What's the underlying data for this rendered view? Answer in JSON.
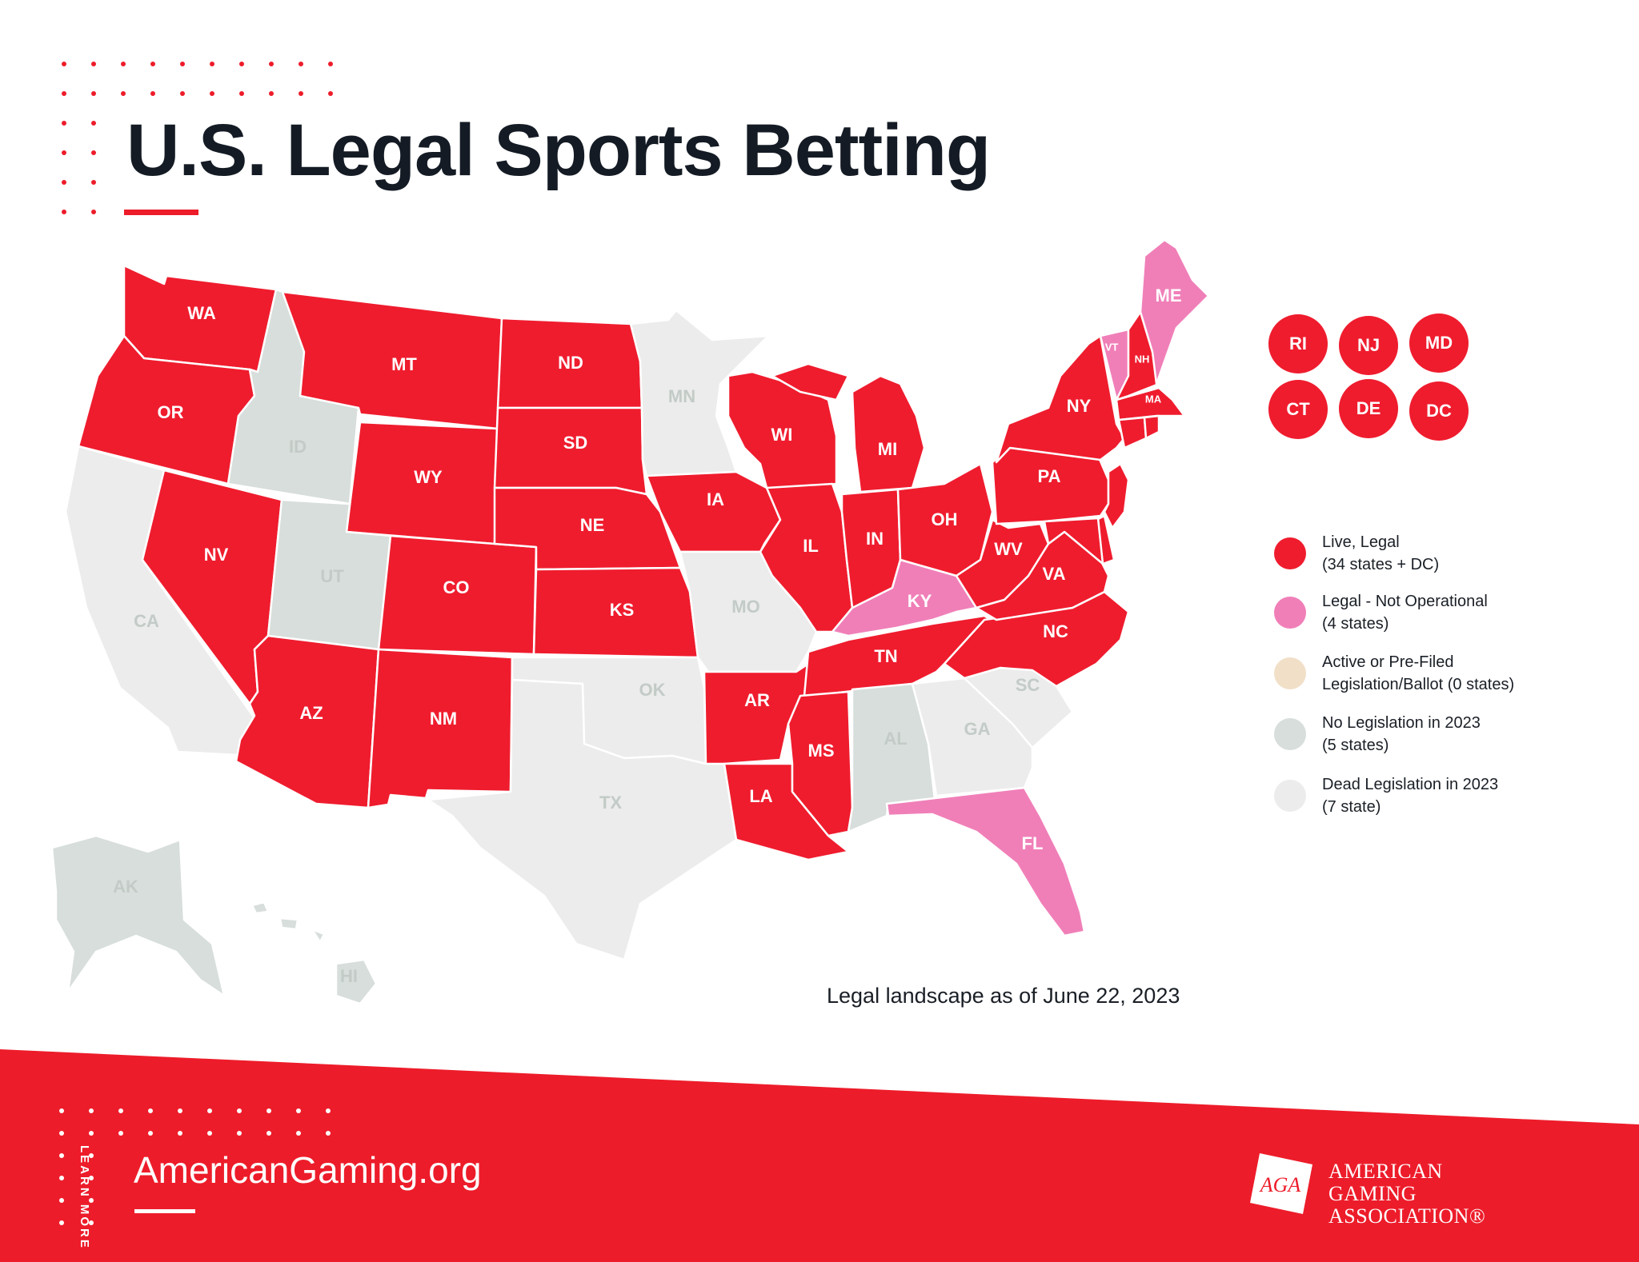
{
  "header": {
    "title": "U.S. Legal Sports Betting"
  },
  "colors": {
    "live_legal": "#ef1c2e",
    "not_operational": "#f07fb8",
    "active_prefiled": "#f1dfc8",
    "no_legislation": "#d7dedb",
    "dead_legislation": "#ebeceb",
    "brand_red": "#ed1c2a",
    "text_dark": "#141b24"
  },
  "map": {
    "states": {
      "WA": {
        "label": "WA",
        "status": "live_legal"
      },
      "OR": {
        "label": "OR",
        "status": "live_legal"
      },
      "CA": {
        "label": "CA",
        "status": "dead_legislation"
      },
      "ID": {
        "label": "ID",
        "status": "no_legislation"
      },
      "NV": {
        "label": "NV",
        "status": "live_legal"
      },
      "MT": {
        "label": "MT",
        "status": "live_legal"
      },
      "WY": {
        "label": "WY",
        "status": "live_legal"
      },
      "UT": {
        "label": "UT",
        "status": "no_legislation"
      },
      "AZ": {
        "label": "AZ",
        "status": "live_legal"
      },
      "CO": {
        "label": "CO",
        "status": "live_legal"
      },
      "NM": {
        "label": "NM",
        "status": "live_legal"
      },
      "ND": {
        "label": "ND",
        "status": "live_legal"
      },
      "SD": {
        "label": "SD",
        "status": "live_legal"
      },
      "NE": {
        "label": "NE",
        "status": "live_legal"
      },
      "KS": {
        "label": "KS",
        "status": "live_legal"
      },
      "OK": {
        "label": "OK",
        "status": "dead_legislation"
      },
      "TX": {
        "label": "TX",
        "status": "dead_legislation"
      },
      "MN": {
        "label": "MN",
        "status": "dead_legislation"
      },
      "IA": {
        "label": "IA",
        "status": "live_legal"
      },
      "MO": {
        "label": "MO",
        "status": "dead_legislation"
      },
      "AR": {
        "label": "AR",
        "status": "live_legal"
      },
      "LA": {
        "label": "LA",
        "status": "live_legal"
      },
      "WI": {
        "label": "WI",
        "status": "live_legal"
      },
      "IL": {
        "label": "IL",
        "status": "live_legal"
      },
      "MI": {
        "label": "MI",
        "status": "live_legal"
      },
      "IN": {
        "label": "IN",
        "status": "live_legal"
      },
      "OH": {
        "label": "OH",
        "status": "live_legal"
      },
      "KY": {
        "label": "KY",
        "status": "not_operational"
      },
      "TN": {
        "label": "TN",
        "status": "live_legal"
      },
      "MS": {
        "label": "MS",
        "status": "live_legal"
      },
      "AL": {
        "label": "AL",
        "status": "no_legislation"
      },
      "GA": {
        "label": "GA",
        "status": "dead_legislation"
      },
      "FL": {
        "label": "FL",
        "status": "not_operational"
      },
      "SC": {
        "label": "SC",
        "status": "dead_legislation"
      },
      "NC": {
        "label": "NC",
        "status": "live_legal"
      },
      "VA": {
        "label": "VA",
        "status": "live_legal"
      },
      "WV": {
        "label": "WV",
        "status": "live_legal"
      },
      "PA": {
        "label": "PA",
        "status": "live_legal"
      },
      "NY": {
        "label": "NY",
        "status": "live_legal"
      },
      "VT": {
        "label": "VT",
        "status": "not_operational"
      },
      "NH": {
        "label": "NH",
        "status": "live_legal"
      },
      "ME": {
        "label": "ME",
        "status": "not_operational"
      },
      "MA": {
        "label": "MA",
        "status": "live_legal"
      },
      "AK": {
        "label": "AK",
        "status": "no_legislation"
      },
      "HI": {
        "label": "HI",
        "status": "no_legislation"
      },
      "NJ_strip": {
        "label": "",
        "status": "live_legal"
      },
      "DE_strip": {
        "label": "",
        "status": "live_legal"
      },
      "MD_strip": {
        "label": "",
        "status": "live_legal"
      },
      "CT_strip": {
        "label": "",
        "status": "live_legal"
      },
      "RI_strip": {
        "label": "",
        "status": "live_legal"
      }
    }
  },
  "small_states": [
    {
      "label": "RI"
    },
    {
      "label": "NJ"
    },
    {
      "label": "MD"
    },
    {
      "label": "CT"
    },
    {
      "label": "DE"
    },
    {
      "label": "DC"
    }
  ],
  "legend": [
    {
      "key": "live_legal",
      "line1": "Live, Legal",
      "line2": "(34 states + DC)"
    },
    {
      "key": "not_operational",
      "line1": "Legal - Not Operational",
      "line2": "(4 states)"
    },
    {
      "key": "active_prefiled",
      "line1": "Active or Pre-Filed",
      "line2": "Legislation/Ballot (0 states)"
    },
    {
      "key": "no_legislation",
      "line1": "No Legislation in 2023",
      "line2": "(5 states)"
    },
    {
      "key": "dead_legislation",
      "line1": "Dead Legislation in 2023",
      "line2": "(7 state)"
    }
  ],
  "as_of": "Legal landscape as of June 22, 2023",
  "footer": {
    "learn_more": "LEARN MORE",
    "site": "AmericanGaming.org",
    "logo_mark": "AGA",
    "org_line1": "AMERICAN",
    "org_line2": "GAMING",
    "org_line3": "ASSOCIATION®"
  }
}
